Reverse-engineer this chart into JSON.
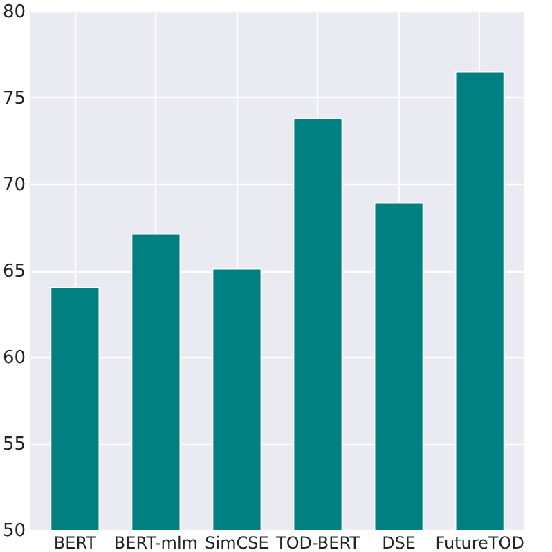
{
  "chart_data": {
    "type": "bar",
    "categories": [
      "BERT",
      "BERT-mlm",
      "SimCSE",
      "TOD-BERT",
      "DSE",
      "FutureTOD"
    ],
    "values": [
      64.0,
      67.1,
      65.1,
      73.8,
      68.9,
      76.5
    ],
    "color": "#008080",
    "ylim": [
      50,
      80
    ],
    "yticks": [
      50,
      55,
      60,
      65,
      70,
      75,
      80
    ],
    "grid": true
  }
}
